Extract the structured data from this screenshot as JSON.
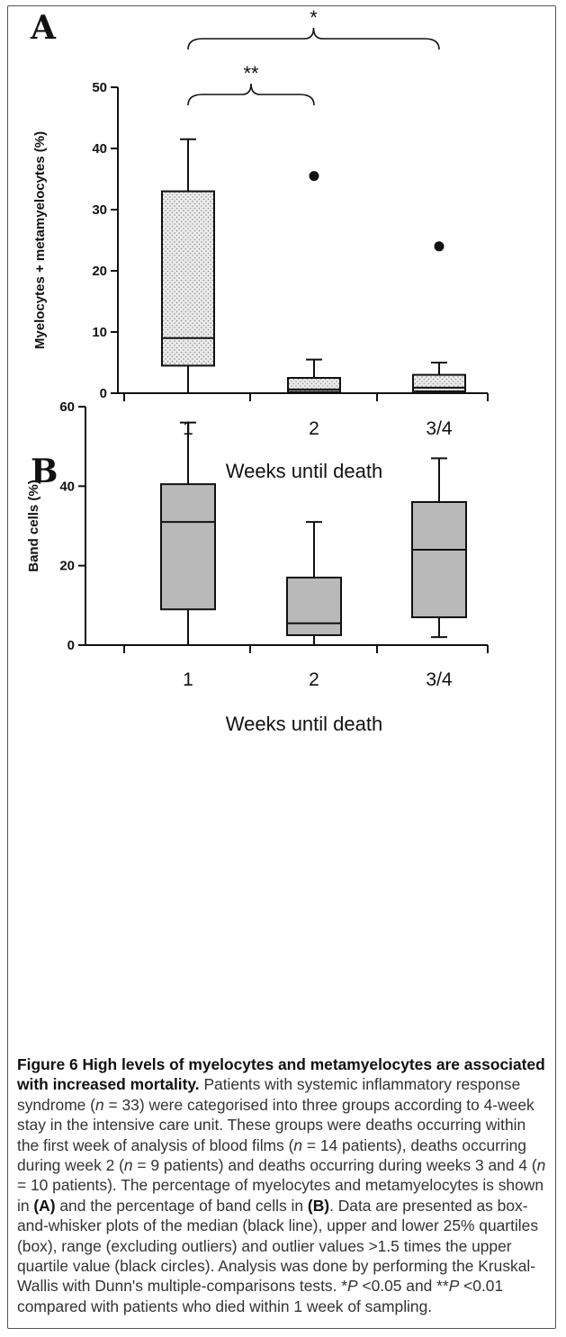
{
  "figure": {
    "panels": [
      {
        "letter": "A"
      },
      {
        "letter": "B"
      }
    ],
    "caption": {
      "title": "Figure 6 High levels of myelocytes and metamyelocytes are associated with increased mortality.",
      "segments": [
        {
          "t": " Patients with systemic inflammatory response syndrome ("
        },
        {
          "t": "n",
          "i": true
        },
        {
          "t": " = 33) were categorised into three groups according to 4-week stay in the intensive care unit. These groups were deaths occurring within the first week of analysis of blood films ("
        },
        {
          "t": "n",
          "i": true
        },
        {
          "t": " = 14 patients), deaths occurring during week 2 ("
        },
        {
          "t": "n",
          "i": true
        },
        {
          "t": " = 9 patients) and deaths occurring during weeks 3 and 4 ("
        },
        {
          "t": "n",
          "i": true
        },
        {
          "t": " = 10 patients). The percentage of myelocytes and metamyelocytes is shown in "
        },
        {
          "t": "(A)",
          "b": true
        },
        {
          "t": " and the percentage of band cells in "
        },
        {
          "t": "(B)",
          "b": true
        },
        {
          "t": ". Data are presented as box-and-whisker plots of the median (black line), upper and lower 25% quartiles (box), range (excluding outliers) and outlier values >1.5 times the upper quartile value (black circles). Analysis was done by performing the Kruskal-Wallis with Dunn's multiple-comparisons tests. *"
        },
        {
          "t": "P",
          "i": true
        },
        {
          "t": " <0.05 and **"
        },
        {
          "t": "P",
          "i": true
        },
        {
          "t": " <0.01 compared with patients who died within 1 week of sampling."
        }
      ]
    }
  },
  "chart_data": [
    {
      "type": "box",
      "panel": "A",
      "ylabel": "Myelocytes + metamyelocytes (%)",
      "xlabel": "Weeks until death",
      "categories": [
        "1",
        "2",
        "3/4"
      ],
      "ylim": [
        0,
        50
      ],
      "yticks": [
        0,
        10,
        20,
        30,
        40,
        50
      ],
      "fill": "dotted",
      "boxes": [
        {
          "min": 0,
          "q1": 4.5,
          "median": 9,
          "q3": 33,
          "max": 41.5,
          "outliers": []
        },
        {
          "min": 0,
          "q1": 0.2,
          "median": 0.6,
          "q3": 2.5,
          "max": 5.5,
          "outliers": [
            35.5
          ]
        },
        {
          "min": 0,
          "q1": 0.3,
          "median": 0.9,
          "q3": 3,
          "max": 5,
          "outliers": [
            24
          ]
        }
      ],
      "significance": [
        {
          "from": 0,
          "to": 1,
          "label": "**"
        },
        {
          "from": 0,
          "to": 2,
          "label": "*"
        }
      ]
    },
    {
      "type": "box",
      "panel": "B",
      "ylabel": "Band cells (%)",
      "xlabel": "Weeks until death",
      "categories": [
        "1",
        "2",
        "3/4"
      ],
      "ylim": [
        0,
        60
      ],
      "yticks": [
        0,
        20,
        40,
        60
      ],
      "fill": "#b9b9b9",
      "boxes": [
        {
          "min": 0,
          "q1": 9,
          "median": 31,
          "q3": 40.5,
          "max": 56,
          "outliers": []
        },
        {
          "min": 0,
          "q1": 2.5,
          "median": 5.5,
          "q3": 17,
          "max": 31,
          "outliers": []
        },
        {
          "min": 2,
          "q1": 7,
          "median": 24,
          "q3": 36,
          "max": 47,
          "outliers": []
        }
      ],
      "significance": []
    }
  ]
}
